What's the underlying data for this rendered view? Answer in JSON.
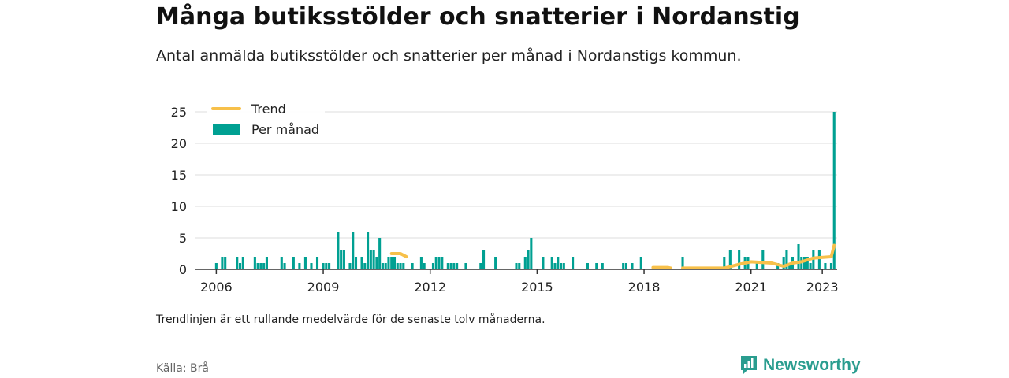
{
  "header": {
    "title": "Många butiksstölder och snatterier i Nordanstig",
    "subtitle": "Antal anmälda butiksstölder och snatterier per månad i Nordanstigs kommun."
  },
  "footer": {
    "note": "Trendlinjen är ett rullande medelvärde för de senaste tolv månaderna.",
    "source": "Källa: Brå",
    "brand": "Newsworthy"
  },
  "colors": {
    "bar": "#00a092",
    "trend": "#f7c04a",
    "grid": "#dddddd",
    "axis": "#333333",
    "brand": "#2a9d8f"
  },
  "chart_data": {
    "type": "bar",
    "title": "Många butiksstölder och snatterier i Nordanstig",
    "xlabel": "",
    "ylabel": "",
    "ylim": [
      0,
      25
    ],
    "yticks": [
      0,
      5,
      10,
      15,
      20,
      25
    ],
    "xticks": [
      2006,
      2009,
      2012,
      2015,
      2018,
      2021,
      2023
    ],
    "xlim": [
      "2005-06",
      "2023-06"
    ],
    "grid": true,
    "legend_position": "top-left",
    "legend": [
      "Trend",
      "Per månad"
    ],
    "series": [
      {
        "name": "Per månad",
        "type": "bar",
        "points": [
          [
            "2006-01",
            1
          ],
          [
            "2006-03",
            2
          ],
          [
            "2006-04",
            2
          ],
          [
            "2006-08",
            2
          ],
          [
            "2006-09",
            1
          ],
          [
            "2006-10",
            2
          ],
          [
            "2007-02",
            2
          ],
          [
            "2007-03",
            1
          ],
          [
            "2007-04",
            1
          ],
          [
            "2007-05",
            1
          ],
          [
            "2007-06",
            2
          ],
          [
            "2007-11",
            2
          ],
          [
            "2007-12",
            1
          ],
          [
            "2008-03",
            2
          ],
          [
            "2008-05",
            1
          ],
          [
            "2008-07",
            2
          ],
          [
            "2008-09",
            1
          ],
          [
            "2008-11",
            2
          ],
          [
            "2009-01",
            1
          ],
          [
            "2009-02",
            1
          ],
          [
            "2009-03",
            1
          ],
          [
            "2009-06",
            6
          ],
          [
            "2009-07",
            3
          ],
          [
            "2009-08",
            3
          ],
          [
            "2009-10",
            1
          ],
          [
            "2009-11",
            6
          ],
          [
            "2009-12",
            2
          ],
          [
            "2010-02",
            2
          ],
          [
            "2010-03",
            1
          ],
          [
            "2010-04",
            6
          ],
          [
            "2010-05",
            3
          ],
          [
            "2010-06",
            3
          ],
          [
            "2010-07",
            2
          ],
          [
            "2010-08",
            5
          ],
          [
            "2010-09",
            1
          ],
          [
            "2010-10",
            1
          ],
          [
            "2010-11",
            2
          ],
          [
            "2010-12",
            2
          ],
          [
            "2011-01",
            2
          ],
          [
            "2011-02",
            1
          ],
          [
            "2011-03",
            1
          ],
          [
            "2011-04",
            1
          ],
          [
            "2011-07",
            1
          ],
          [
            "2011-10",
            2
          ],
          [
            "2011-11",
            1
          ],
          [
            "2012-02",
            1
          ],
          [
            "2012-03",
            2
          ],
          [
            "2012-04",
            2
          ],
          [
            "2012-05",
            2
          ],
          [
            "2012-07",
            1
          ],
          [
            "2012-08",
            1
          ],
          [
            "2012-09",
            1
          ],
          [
            "2012-10",
            1
          ],
          [
            "2013-01",
            1
          ],
          [
            "2013-06",
            1
          ],
          [
            "2013-07",
            3
          ],
          [
            "2013-11",
            2
          ],
          [
            "2014-06",
            1
          ],
          [
            "2014-07",
            1
          ],
          [
            "2014-09",
            2
          ],
          [
            "2014-10",
            3
          ],
          [
            "2014-11",
            5
          ],
          [
            "2015-03",
            2
          ],
          [
            "2015-06",
            2
          ],
          [
            "2015-07",
            1
          ],
          [
            "2015-08",
            2
          ],
          [
            "2015-09",
            1
          ],
          [
            "2015-10",
            1
          ],
          [
            "2016-01",
            2
          ],
          [
            "2016-06",
            1
          ],
          [
            "2016-09",
            1
          ],
          [
            "2016-11",
            1
          ],
          [
            "2017-06",
            1
          ],
          [
            "2017-07",
            1
          ],
          [
            "2017-09",
            1
          ],
          [
            "2017-12",
            2
          ],
          [
            "2019-02",
            2
          ],
          [
            "2020-04",
            2
          ],
          [
            "2020-06",
            3
          ],
          [
            "2020-09",
            3
          ],
          [
            "2020-11",
            2
          ],
          [
            "2020-12",
            2
          ],
          [
            "2021-03",
            1
          ],
          [
            "2021-05",
            3
          ],
          [
            "2021-10",
            1
          ],
          [
            "2021-12",
            2
          ],
          [
            "2022-01",
            3
          ],
          [
            "2022-02",
            1
          ],
          [
            "2022-03",
            2
          ],
          [
            "2022-05",
            4
          ],
          [
            "2022-06",
            2
          ],
          [
            "2022-07",
            2
          ],
          [
            "2022-08",
            2
          ],
          [
            "2022-09",
            1
          ],
          [
            "2022-10",
            3
          ],
          [
            "2022-12",
            3
          ],
          [
            "2023-02",
            1
          ],
          [
            "2023-04",
            1
          ],
          [
            "2023-05",
            25
          ]
        ]
      },
      {
        "name": "Trend",
        "type": "line",
        "segments": [
          [
            [
              "2010-12",
              2.5
            ],
            [
              "2011-03",
              2.5
            ],
            [
              "2011-05",
              2.0
            ]
          ],
          [
            [
              "2018-04",
              0.3
            ],
            [
              "2018-09",
              0.3
            ],
            [
              "2018-10",
              0.2
            ]
          ],
          [
            [
              "2019-02",
              0.2
            ],
            [
              "2020-04",
              0.2
            ],
            [
              "2020-09",
              0.8
            ],
            [
              "2021-01",
              1.2
            ],
            [
              "2021-08",
              1.0
            ],
            [
              "2021-12",
              0.5
            ],
            [
              "2022-03",
              1.0
            ],
            [
              "2022-06",
              1.2
            ],
            [
              "2022-10",
              1.8
            ],
            [
              "2023-04",
              2.0
            ],
            [
              "2023-05",
              3.8
            ]
          ]
        ]
      }
    ]
  }
}
